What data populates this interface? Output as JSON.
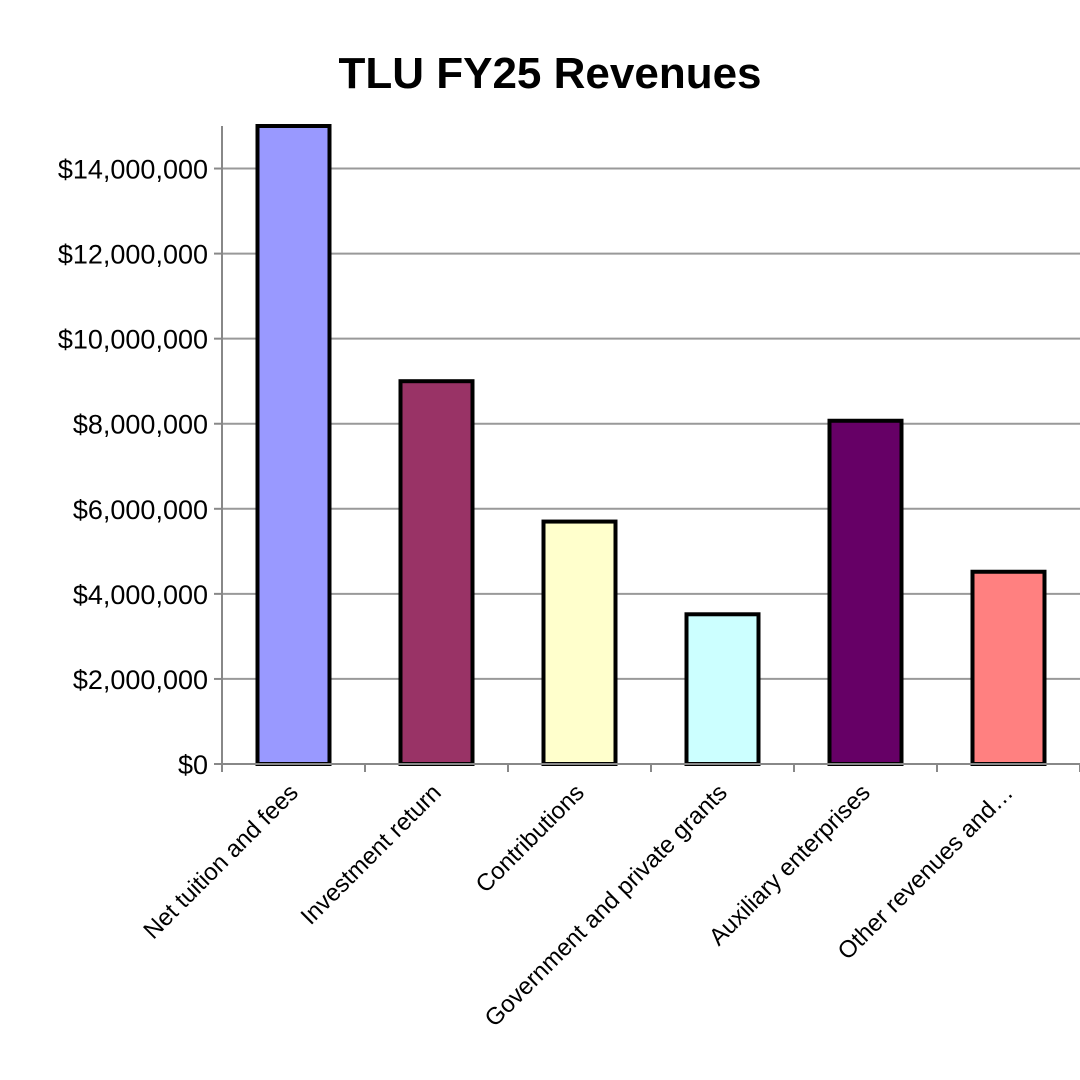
{
  "chart_data": {
    "type": "bar",
    "title": "TLU FY25 Revenues",
    "xlabel": "",
    "ylabel": "",
    "categories": [
      "Net tuition and fees",
      "Investment return",
      "Contributions",
      "Government and private grants",
      "Auxiliary enterprises",
      "Other revenues and…"
    ],
    "values": [
      15000000,
      9000000,
      5700000,
      3520000,
      8070000,
      4520000
    ],
    "colors": [
      "#9999ff",
      "#993366",
      "#ffffcc",
      "#ccffff",
      "#660066",
      "#ff8080"
    ],
    "ylim": [
      0,
      15000000
    ],
    "yticks": [
      0,
      2000000,
      4000000,
      6000000,
      8000000,
      10000000,
      12000000,
      14000000
    ],
    "ytick_labels": [
      "$0",
      "$2,000,000",
      "$4,000,000",
      "$6,000,000",
      "$8,000,000",
      "$10,000,000",
      "$12,000,000",
      "$14,000,000"
    ],
    "grid": true,
    "legend": "none",
    "note": "First bar extends beyond the top of the axis (clipped)"
  }
}
